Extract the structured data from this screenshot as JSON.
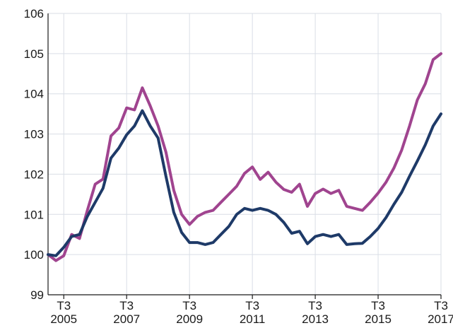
{
  "colors": {
    "series_pink": "#a0448f",
    "series_navy": "#1e3a68",
    "grid": "#d9dee6",
    "axis": "#1a1a1a",
    "background": "#ffffff"
  },
  "chart_data": {
    "type": "line",
    "title": "",
    "xlabel": "",
    "ylabel": "",
    "grid": true,
    "xlim": [
      2005.0,
      2017.5
    ],
    "ylim": [
      99,
      106
    ],
    "y_ticks": [
      "99",
      "100",
      "101",
      "102",
      "103",
      "104",
      "105",
      "106"
    ],
    "x_ticks": [
      {
        "x": 2005.5,
        "quarter": "T3",
        "year": "2005"
      },
      {
        "x": 2007.5,
        "quarter": "T3",
        "year": "2007"
      },
      {
        "x": 2009.5,
        "quarter": "T3",
        "year": "2009"
      },
      {
        "x": 2011.5,
        "quarter": "T3",
        "year": "2011"
      },
      {
        "x": 2013.5,
        "quarter": "T3",
        "year": "2013"
      },
      {
        "x": 2015.5,
        "quarter": "T3",
        "year": "2015"
      },
      {
        "x": 2017.5,
        "quarter": "T3",
        "year": "2017"
      }
    ],
    "x": [
      2005.0,
      2005.25,
      2005.5,
      2005.75,
      2006.0,
      2006.25,
      2006.5,
      2006.75,
      2007.0,
      2007.25,
      2007.5,
      2007.75,
      2008.0,
      2008.25,
      2008.5,
      2008.75,
      2009.0,
      2009.25,
      2009.5,
      2009.75,
      2010.0,
      2010.25,
      2010.5,
      2010.75,
      2011.0,
      2011.25,
      2011.5,
      2011.75,
      2012.0,
      2012.25,
      2012.5,
      2012.75,
      2013.0,
      2013.25,
      2013.5,
      2013.75,
      2014.0,
      2014.25,
      2014.5,
      2014.75,
      2015.0,
      2015.25,
      2015.5,
      2015.75,
      2016.0,
      2016.25,
      2016.5,
      2016.75,
      2017.0,
      2017.25,
      2017.5
    ],
    "series": [
      {
        "color": "#a0448f",
        "values": [
          100.0,
          99.85,
          99.97,
          100.5,
          100.4,
          101.1,
          101.75,
          101.88,
          102.95,
          103.15,
          103.65,
          103.6,
          104.15,
          103.7,
          103.2,
          102.55,
          101.6,
          101.0,
          100.75,
          100.95,
          101.05,
          101.1,
          101.3,
          101.5,
          101.7,
          102.02,
          102.18,
          101.87,
          102.05,
          101.8,
          101.62,
          101.55,
          101.75,
          101.2,
          101.52,
          101.63,
          101.52,
          101.6,
          101.2,
          101.15,
          101.1,
          101.3,
          101.53,
          101.8,
          102.15,
          102.6,
          103.2,
          103.85,
          104.25,
          104.85,
          105.0
        ]
      },
      {
        "color": "#1e3a68",
        "values": [
          100.0,
          99.97,
          100.18,
          100.45,
          100.5,
          100.95,
          101.3,
          101.65,
          102.4,
          102.65,
          102.98,
          103.2,
          103.58,
          103.2,
          102.9,
          101.95,
          101.05,
          100.55,
          100.3,
          100.3,
          100.25,
          100.3,
          100.5,
          100.7,
          101.0,
          101.15,
          101.1,
          101.15,
          101.1,
          101.0,
          100.8,
          100.53,
          100.58,
          100.27,
          100.45,
          100.5,
          100.45,
          100.5,
          100.25,
          100.27,
          100.28,
          100.45,
          100.65,
          100.92,
          101.25,
          101.55,
          101.95,
          102.33,
          102.73,
          103.2,
          103.5
        ]
      }
    ]
  }
}
